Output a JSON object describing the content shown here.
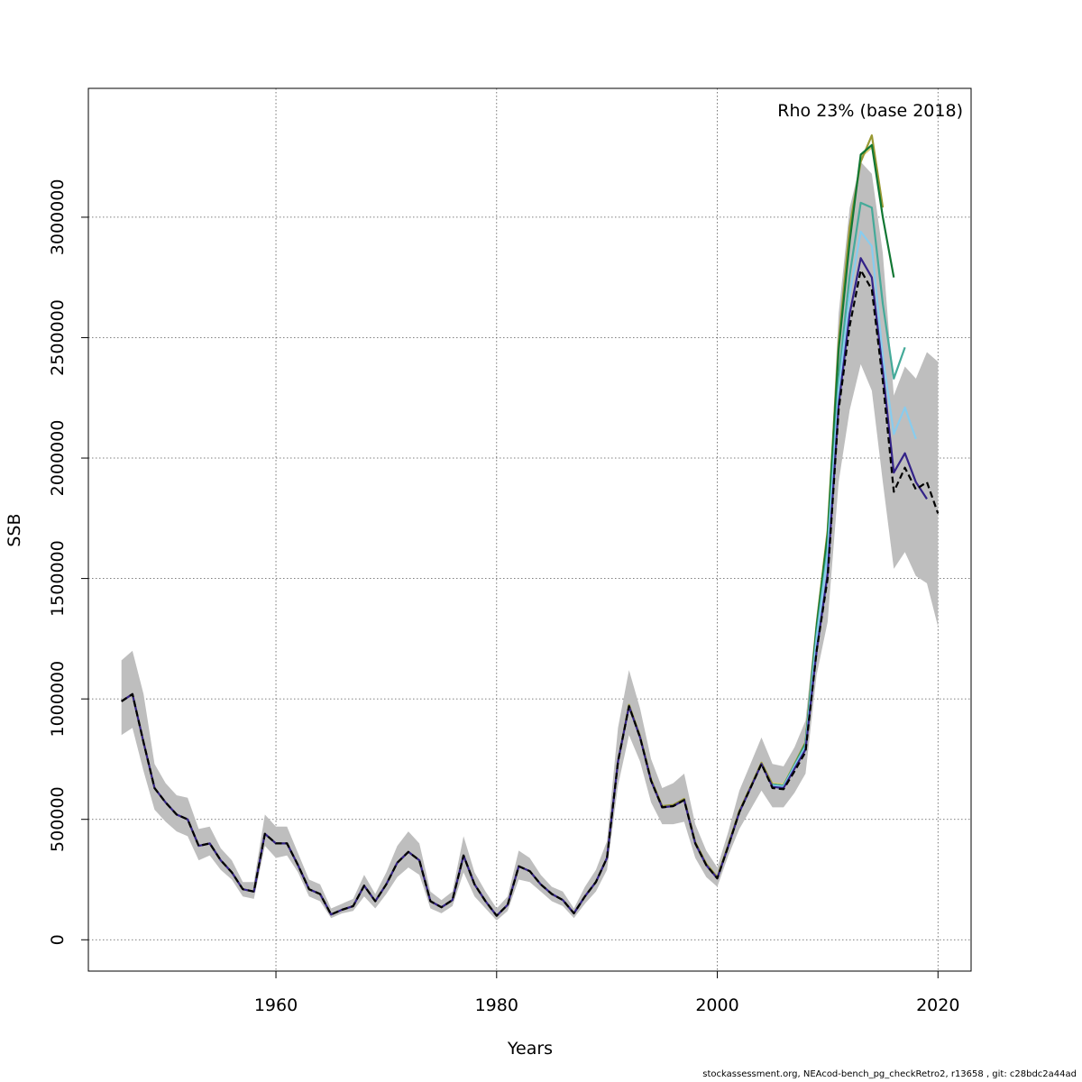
{
  "chart_data": {
    "type": "line",
    "title": "",
    "annotation": "Rho 23% (base 2018)",
    "xlabel": "Years",
    "ylabel": "SSB",
    "xlim": [
      1943,
      2023
    ],
    "ylim": [
      -130000,
      3535000
    ],
    "x_ticks": [
      1960,
      1980,
      2000,
      2020
    ],
    "y_ticks": [
      0,
      500000,
      1000000,
      1500000,
      2000000,
      2500000,
      3000000
    ],
    "x_tick_labels": [
      "1960",
      "1980",
      "2000",
      "2020"
    ],
    "y_tick_labels": [
      "0",
      "500000",
      "1000000",
      "1500000",
      "2000000",
      "2500000",
      "3000000"
    ],
    "grid": true,
    "colors": {
      "band": "#bebebe",
      "base": "#000000",
      "retro_2019": "#332288",
      "retro_2018": "#88ccee",
      "retro_2017": "#44aa99",
      "retro_2016": "#117733",
      "retro_2015": "#999933",
      "retro_2014": "#ddcc77"
    },
    "band": {
      "x": [
        1946,
        1947,
        1948,
        1949,
        1950,
        1951,
        1952,
        1953,
        1954,
        1955,
        1956,
        1957,
        1958,
        1959,
        1960,
        1961,
        1962,
        1963,
        1964,
        1965,
        1966,
        1967,
        1968,
        1969,
        1970,
        1971,
        1972,
        1973,
        1974,
        1975,
        1976,
        1977,
        1978,
        1979,
        1980,
        1981,
        1982,
        1983,
        1984,
        1985,
        1986,
        1987,
        1988,
        1989,
        1990,
        1991,
        1992,
        1993,
        1994,
        1995,
        1996,
        1997,
        1998,
        1999,
        2000,
        2001,
        2002,
        2003,
        2004,
        2005,
        2006,
        2007,
        2008,
        2009,
        2010,
        2011,
        2012,
        2013,
        2014,
        2015,
        2016,
        2017,
        2018,
        2019,
        2020
      ],
      "upper": [
        1160000,
        1200000,
        1020000,
        730000,
        650000,
        600000,
        590000,
        460000,
        470000,
        380000,
        330000,
        240000,
        240000,
        520000,
        470000,
        470000,
        360000,
        250000,
        230000,
        130000,
        150000,
        170000,
        270000,
        190000,
        280000,
        390000,
        450000,
        400000,
        200000,
        165000,
        200000,
        430000,
        280000,
        200000,
        130000,
        180000,
        370000,
        340000,
        270000,
        220000,
        200000,
        130000,
        220000,
        290000,
        410000,
        880000,
        1120000,
        960000,
        750000,
        630000,
        650000,
        690000,
        480000,
        370000,
        300000,
        450000,
        620000,
        730000,
        840000,
        730000,
        720000,
        800000,
        910000,
        1350000,
        1720000,
        2600000,
        3040000,
        3230000,
        3180000,
        2850000,
        2260000,
        2380000,
        2330000,
        2440000,
        2400000
      ],
      "lower": [
        850000,
        880000,
        700000,
        540000,
        490000,
        450000,
        430000,
        330000,
        350000,
        290000,
        250000,
        180000,
        170000,
        390000,
        340000,
        350000,
        280000,
        180000,
        160000,
        90000,
        110000,
        120000,
        180000,
        130000,
        190000,
        260000,
        300000,
        270000,
        130000,
        110000,
        140000,
        280000,
        180000,
        130000,
        80000,
        120000,
        250000,
        240000,
        200000,
        160000,
        140000,
        90000,
        150000,
        200000,
        290000,
        640000,
        850000,
        740000,
        570000,
        480000,
        480000,
        490000,
        340000,
        260000,
        220000,
        350000,
        460000,
        540000,
        620000,
        550000,
        550000,
        610000,
        690000,
        1100000,
        1320000,
        1900000,
        2200000,
        2390000,
        2280000,
        1900000,
        1540000,
        1610000,
        1510000,
        1480000,
        1300000
      ]
    },
    "series": [
      {
        "key": "base",
        "dashed": true,
        "x": [
          1946,
          1947,
          1948,
          1949,
          1950,
          1951,
          1952,
          1953,
          1954,
          1955,
          1956,
          1957,
          1958,
          1959,
          1960,
          1961,
          1962,
          1963,
          1964,
          1965,
          1966,
          1967,
          1968,
          1969,
          1970,
          1971,
          1972,
          1973,
          1974,
          1975,
          1976,
          1977,
          1978,
          1979,
          1980,
          1981,
          1982,
          1983,
          1984,
          1985,
          1986,
          1987,
          1988,
          1989,
          1990,
          1991,
          1992,
          1993,
          1994,
          1995,
          1996,
          1997,
          1998,
          1999,
          2000,
          2001,
          2002,
          2003,
          2004,
          2005,
          2006,
          2007,
          2008,
          2009,
          2010,
          2011,
          2012,
          2013,
          2014,
          2015,
          2016,
          2017,
          2018,
          2019,
          2020
        ],
        "y": [
          990000,
          1020000,
          820000,
          630000,
          570000,
          520000,
          500000,
          390000,
          400000,
          330000,
          280000,
          210000,
          200000,
          440000,
          400000,
          400000,
          310000,
          210000,
          190000,
          105000,
          125000,
          140000,
          225000,
          160000,
          230000,
          320000,
          365000,
          330000,
          160000,
          135000,
          165000,
          350000,
          230000,
          160000,
          100000,
          145000,
          305000,
          285000,
          230000,
          190000,
          165000,
          110000,
          180000,
          240000,
          340000,
          740000,
          970000,
          840000,
          660000,
          550000,
          555000,
          580000,
          400000,
          310000,
          255000,
          390000,
          530000,
          630000,
          730000,
          630000,
          625000,
          700000,
          780000,
          1200000,
          1500000,
          2200000,
          2550000,
          2780000,
          2700000,
          2320000,
          1860000,
          1960000,
          1870000,
          1900000,
          1770000
        ]
      },
      {
        "key": "retro_2019",
        "x": [
          1946,
          1947,
          1948,
          1949,
          1950,
          1951,
          1952,
          1953,
          1954,
          1955,
          1956,
          1957,
          1958,
          1959,
          1960,
          1961,
          1962,
          1963,
          1964,
          1965,
          1966,
          1967,
          1968,
          1969,
          1970,
          1971,
          1972,
          1973,
          1974,
          1975,
          1976,
          1977,
          1978,
          1979,
          1980,
          1981,
          1982,
          1983,
          1984,
          1985,
          1986,
          1987,
          1988,
          1989,
          1990,
          1991,
          1992,
          1993,
          1994,
          1995,
          1996,
          1997,
          1998,
          1999,
          2000,
          2001,
          2002,
          2003,
          2004,
          2005,
          2006,
          2007,
          2008,
          2009,
          2010,
          2011,
          2012,
          2013,
          2014,
          2015,
          2016,
          2017,
          2018,
          2019
        ],
        "y": [
          990000,
          1020000,
          820000,
          630000,
          570000,
          520000,
          500000,
          390000,
          400000,
          330000,
          280000,
          210000,
          200000,
          440000,
          400000,
          400000,
          310000,
          210000,
          190000,
          105000,
          125000,
          140000,
          225000,
          160000,
          230000,
          320000,
          365000,
          330000,
          160000,
          135000,
          165000,
          350000,
          230000,
          160000,
          100000,
          145000,
          305000,
          285000,
          230000,
          190000,
          165000,
          110000,
          180000,
          240000,
          340000,
          740000,
          970000,
          840000,
          660000,
          550000,
          555000,
          580000,
          400000,
          310000,
          255000,
          390000,
          530000,
          630000,
          730000,
          635000,
          630000,
          710000,
          790000,
          1200000,
          1520000,
          2220000,
          2600000,
          2830000,
          2750000,
          2360000,
          1940000,
          2020000,
          1900000,
          1830000
        ]
      },
      {
        "key": "retro_2018",
        "x": [
          2005,
          2006,
          2007,
          2008,
          2009,
          2010,
          2011,
          2012,
          2013,
          2014,
          2015,
          2016,
          2017,
          2018
        ],
        "y": [
          640000,
          635000,
          720000,
          800000,
          1250000,
          1600000,
          2280000,
          2680000,
          2940000,
          2880000,
          2420000,
          2100000,
          2210000,
          2080000
        ]
      },
      {
        "key": "retro_2017",
        "x": [
          2005,
          2006,
          2007,
          2008,
          2009,
          2010,
          2011,
          2012,
          2013,
          2014,
          2015,
          2016,
          2017
        ],
        "y": [
          645000,
          640000,
          725000,
          810000,
          1270000,
          1630000,
          2330000,
          2760000,
          3060000,
          3040000,
          2640000,
          2330000,
          2460000
        ]
      },
      {
        "key": "retro_2016",
        "x": [
          2005,
          2006,
          2007,
          2008,
          2009,
          2010,
          2011,
          2012,
          2013,
          2014,
          2015,
          2016
        ],
        "y": [
          645000,
          640000,
          725000,
          815000,
          1300000,
          1680000,
          2450000,
          2900000,
          3260000,
          3300000,
          3000000,
          2750000
        ]
      },
      {
        "key": "retro_2015",
        "x": [
          1946,
          1947,
          1948,
          1949,
          1950,
          1951,
          1952,
          1953,
          1954,
          1955,
          1956,
          1957,
          1958,
          1959,
          1960,
          1961,
          1962,
          1963,
          1964,
          1965,
          1966,
          1967,
          1968,
          1969,
          1970,
          1971,
          1972,
          1973,
          1974,
          1975,
          1976,
          1977,
          1978,
          1979,
          1980,
          1981,
          1982,
          1983,
          1984,
          1985,
          1986,
          1987,
          1988,
          1989,
          1990,
          1991,
          1992,
          1993,
          1994,
          1995,
          1996,
          1997,
          1998,
          1999,
          2000,
          2001,
          2002,
          2003,
          2004,
          2005,
          2006,
          2007,
          2008,
          2009,
          2010,
          2011,
          2012,
          2013,
          2014,
          2015
        ],
        "y": [
          990000,
          1020000,
          820000,
          630000,
          570000,
          520000,
          500000,
          390000,
          400000,
          330000,
          280000,
          210000,
          200000,
          440000,
          400000,
          400000,
          310000,
          210000,
          190000,
          105000,
          125000,
          140000,
          225000,
          160000,
          230000,
          320000,
          365000,
          330000,
          160000,
          135000,
          165000,
          350000,
          230000,
          160000,
          100000,
          145000,
          305000,
          285000,
          230000,
          190000,
          165000,
          110000,
          180000,
          240000,
          340000,
          740000,
          975000,
          845000,
          665000,
          555000,
          560000,
          585000,
          405000,
          315000,
          260000,
          395000,
          535000,
          635000,
          735000,
          645000,
          640000,
          730000,
          820000,
          1310000,
          1700000,
          2480000,
          2960000,
          3230000,
          3340000,
          3040000
        ]
      },
      {
        "key": "retro_2014",
        "x": [
          2005,
          2006,
          2007,
          2008,
          2009,
          2010,
          2011,
          2012,
          2013,
          2014
        ],
        "y": [
          650000,
          645000,
          730000,
          820000,
          1300000,
          1690000,
          2460000,
          2920000,
          3250000,
          3290000
        ]
      }
    ]
  },
  "footer": "stockassessment.org, NEAcod-bench_pg_checkRetro2, r13658 , git: c28bdc2a44ad"
}
